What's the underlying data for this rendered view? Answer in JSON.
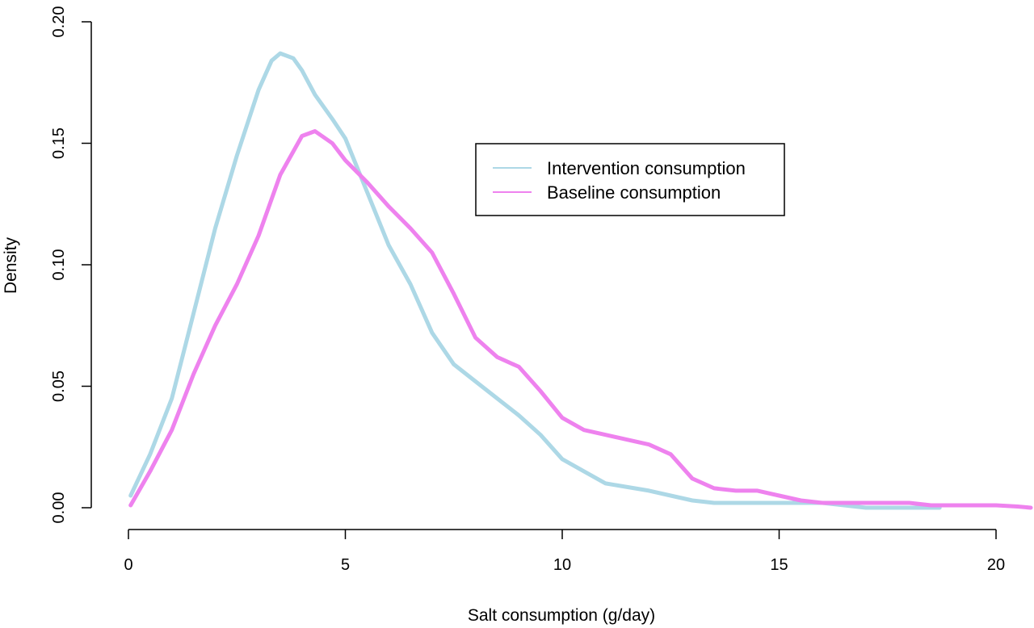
{
  "chart_data": {
    "type": "line",
    "title": "",
    "xlabel": "Salt consumption (g/day)",
    "ylabel": "Density",
    "xlim": [
      0,
      20.8
    ],
    "ylim": [
      0,
      0.2
    ],
    "x_ticks": [
      0,
      5,
      10,
      15,
      20
    ],
    "x_tick_labels": [
      "0",
      "5",
      "10",
      "15",
      "20"
    ],
    "y_ticks": [
      0,
      0.05,
      0.1,
      0.15,
      0.2
    ],
    "y_tick_labels": [
      "0.00",
      "0.05",
      "0.10",
      "0.15",
      "0.20"
    ],
    "grid": false,
    "legend_position": "top-right",
    "series": [
      {
        "name": "Intervention consumption",
        "color": "#add8e6",
        "points": [
          [
            0.05,
            0.005
          ],
          [
            0.5,
            0.022
          ],
          [
            1.0,
            0.045
          ],
          [
            1.5,
            0.08
          ],
          [
            2.0,
            0.115
          ],
          [
            2.5,
            0.145
          ],
          [
            3.0,
            0.172
          ],
          [
            3.3,
            0.184
          ],
          [
            3.5,
            0.187
          ],
          [
            3.8,
            0.185
          ],
          [
            4.0,
            0.18
          ],
          [
            4.3,
            0.17
          ],
          [
            4.7,
            0.16
          ],
          [
            5.0,
            0.152
          ],
          [
            5.5,
            0.13
          ],
          [
            6.0,
            0.108
          ],
          [
            6.5,
            0.092
          ],
          [
            7.0,
            0.072
          ],
          [
            7.5,
            0.059
          ],
          [
            8.0,
            0.052
          ],
          [
            8.5,
            0.045
          ],
          [
            9.0,
            0.038
          ],
          [
            9.5,
            0.03
          ],
          [
            10.0,
            0.02
          ],
          [
            10.5,
            0.015
          ],
          [
            11.0,
            0.01
          ],
          [
            12.0,
            0.007
          ],
          [
            12.5,
            0.005
          ],
          [
            13.0,
            0.003
          ],
          [
            13.5,
            0.002
          ],
          [
            15.0,
            0.002
          ],
          [
            16.0,
            0.002
          ],
          [
            17.0,
            0.0
          ],
          [
            18.0,
            0.0
          ],
          [
            18.7,
            0.0
          ]
        ]
      },
      {
        "name": "Baseline consumption",
        "color": "#ee82ee",
        "points": [
          [
            0.05,
            0.001
          ],
          [
            0.5,
            0.015
          ],
          [
            1.0,
            0.032
          ],
          [
            1.5,
            0.055
          ],
          [
            2.0,
            0.075
          ],
          [
            2.5,
            0.092
          ],
          [
            3.0,
            0.112
          ],
          [
            3.5,
            0.137
          ],
          [
            4.0,
            0.153
          ],
          [
            4.3,
            0.155
          ],
          [
            4.7,
            0.15
          ],
          [
            5.0,
            0.143
          ],
          [
            5.5,
            0.134
          ],
          [
            6.0,
            0.124
          ],
          [
            6.5,
            0.115
          ],
          [
            7.0,
            0.105
          ],
          [
            7.5,
            0.088
          ],
          [
            8.0,
            0.07
          ],
          [
            8.5,
            0.062
          ],
          [
            9.0,
            0.058
          ],
          [
            9.5,
            0.048
          ],
          [
            10.0,
            0.037
          ],
          [
            10.5,
            0.032
          ],
          [
            11.0,
            0.03
          ],
          [
            11.5,
            0.028
          ],
          [
            12.0,
            0.026
          ],
          [
            12.5,
            0.022
          ],
          [
            13.0,
            0.012
          ],
          [
            13.5,
            0.008
          ],
          [
            14.0,
            0.007
          ],
          [
            14.5,
            0.007
          ],
          [
            15.0,
            0.005
          ],
          [
            15.5,
            0.003
          ],
          [
            16.0,
            0.002
          ],
          [
            17.0,
            0.002
          ],
          [
            18.0,
            0.002
          ],
          [
            18.5,
            0.001
          ],
          [
            19.0,
            0.001
          ],
          [
            20.0,
            0.001
          ],
          [
            20.5,
            0.0005
          ],
          [
            20.8,
            0.0
          ]
        ]
      }
    ]
  }
}
